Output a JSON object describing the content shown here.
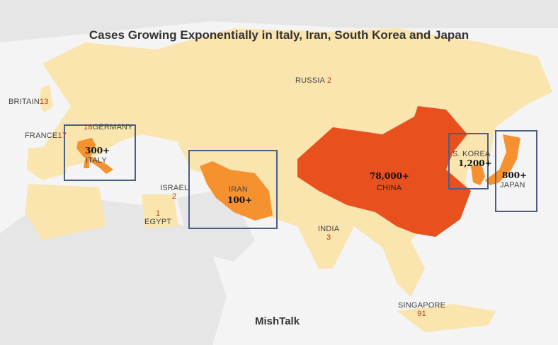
{
  "title": "Cases Growing Exponentially  in Italy, Iran, South Korea and Japan",
  "credit": "MishTalk",
  "colors": {
    "water": "#f4f4f4",
    "other_land": "#e6e6e6",
    "affected_land": "#fbe5af",
    "china": "#e8501e",
    "highlight": "#f5922f",
    "box": "#4a5e86",
    "count_text": "#b03a1a"
  },
  "countries": [
    {
      "name": "RUSSIA",
      "count": "2"
    },
    {
      "name": "BRITAIN",
      "count": "13"
    },
    {
      "name": "FRANCE",
      "count": "17"
    },
    {
      "name": "GERMANY",
      "count": "18"
    },
    {
      "name": "ITALY",
      "count": "300+"
    },
    {
      "name": "ISRAEL",
      "count": "2"
    },
    {
      "name": "EGYPT",
      "count": "1"
    },
    {
      "name": "IRAN",
      "count": "100+"
    },
    {
      "name": "INDIA",
      "count": "3"
    },
    {
      "name": "CHINA",
      "count": "78,000+"
    },
    {
      "name": "S. KOREA",
      "count": "1,200+"
    },
    {
      "name": "JAPAN",
      "count": "800+"
    },
    {
      "name": "SINGAPORE",
      "count": "91"
    }
  ]
}
